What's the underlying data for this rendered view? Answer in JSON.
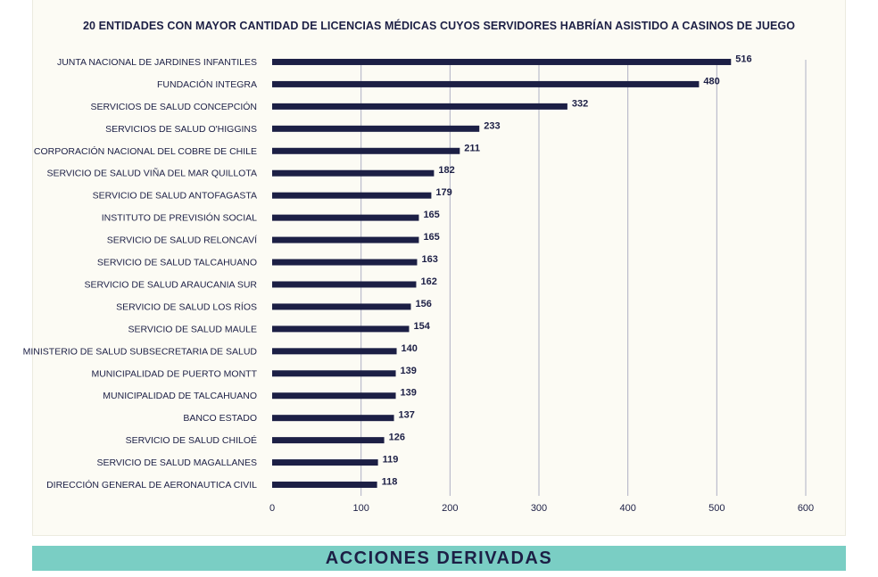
{
  "chart_data": {
    "type": "bar",
    "orientation": "horizontal",
    "title": "20 ENTIDADES CON MAYOR CANTIDAD DE LICENCIAS MÉDICAS CUYOS SERVIDORES HABRÍAN ASISTIDO A CASINOS DE JUEGO",
    "categories": [
      "JUNTA NACIONAL DE JARDINES INFANTILES",
      "FUNDACIÓN INTEGRA",
      "SERVICIOS DE SALUD CONCEPCIÓN",
      "SERVICIOS DE SALUD O'HIGGINS",
      "CORPORACIÓN NACIONAL DEL COBRE DE CHILE",
      "SERVICIO DE SALUD VIÑA DEL MAR QUILLOTA",
      "SERVICIO DE SALUD ANTOFAGASTA",
      "INSTITUTO DE PREVISIÓN SOCIAL",
      "SERVICIO DE SALUD RELONCAVÍ",
      "SERVICIO DE SALUD TALCAHUANO",
      "SERVICIO DE SALUD ARAUCANIA SUR",
      "SERVICIO DE SALUD LOS RÍOS",
      "SERVICIO DE SALUD MAULE",
      "MINISTERIO DE SALUD SUBSECRETARIA DE SALUD",
      "MUNICIPALIDAD DE PUERTO MONTT",
      "MUNICIPALIDAD DE TALCAHUANO",
      "BANCO ESTADO",
      "SERVICIO DE SALUD CHILOÉ",
      "SERVICIO DE SALUD MAGALLANES",
      "DIRECCIÓN GENERAL DE AERONAUTICA CIVIL"
    ],
    "values": [
      516,
      480,
      332,
      233,
      211,
      182,
      179,
      165,
      165,
      163,
      162,
      156,
      154,
      140,
      139,
      139,
      137,
      126,
      119,
      118
    ],
    "xticks": [
      0,
      100,
      200,
      300,
      400,
      500,
      600
    ],
    "xlim": [
      0,
      600
    ],
    "grid": true,
    "xlabel": "",
    "ylabel": "",
    "bar_color": "#1c1f45"
  },
  "footer": {
    "banner_label": "ACCIONES DERIVADAS",
    "banner_color": "#7acec4"
  }
}
